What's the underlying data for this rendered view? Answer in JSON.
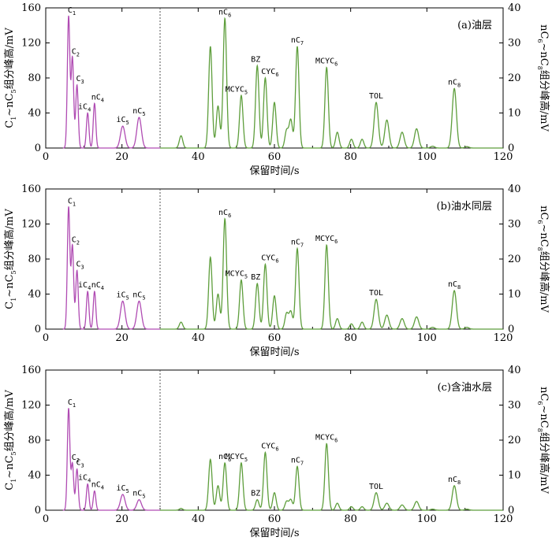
{
  "chart_data": [
    {
      "type": "line",
      "panel_label": "(a)油层",
      "xlabel": "保留时间/s",
      "ylabel_left": "C1~nC5组分峰高/mV",
      "ylabel_right": "nC6~nC8组分峰高/mV",
      "xlim": [
        0,
        120
      ],
      "xticks": [
        0,
        20,
        40,
        60,
        80,
        100,
        120
      ],
      "ylim_left": [
        0,
        160
      ],
      "yticks_left": [
        40,
        80,
        120,
        160
      ],
      "ylim_right": [
        0,
        40
      ],
      "yticks_right": [
        10,
        20,
        30,
        40
      ],
      "divider_x": 30,
      "series": [
        {
          "color": "#b04cb3",
          "axis": "left",
          "peaks": [
            {
              "label": "C1",
              "x": 6.0,
              "y": 150
            },
            {
              "label": "C2",
              "x": 7.0,
              "y": 103
            },
            {
              "label": "C3",
              "x": 8.2,
              "y": 72
            },
            {
              "label": "iC4",
              "x": 11.0,
              "y": 40
            },
            {
              "label": "nC4",
              "x": 12.8,
              "y": 51
            },
            {
              "label": "iC5",
              "x": 20.2,
              "y": 25
            },
            {
              "label": "nC5",
              "x": 24.5,
              "y": 35
            }
          ]
        },
        {
          "color": "#5e9e3c",
          "axis": "right",
          "peaks": [
            {
              "label": "",
              "x": 35.5,
              "y": 3.5
            },
            {
              "label": "",
              "x": 43.2,
              "y": 29
            },
            {
              "label": "",
              "x": 45.2,
              "y": 12
            },
            {
              "label": "nC6",
              "x": 47.0,
              "y": 37
            },
            {
              "label": "MCYC5",
              "x": 51.3,
              "y": 15
            },
            {
              "label": "BZ",
              "x": 55.5,
              "y": 23.5
            },
            {
              "label": "CYC6",
              "x": 57.6,
              "y": 20
            },
            {
              "label": "",
              "x": 60.0,
              "y": 13
            },
            {
              "label": "",
              "x": 63.2,
              "y": 5
            },
            {
              "label": "",
              "x": 64.3,
              "y": 8
            },
            {
              "label": "nC7",
              "x": 66.0,
              "y": 29
            },
            {
              "label": "MCYC6",
              "x": 73.7,
              "y": 23
            },
            {
              "label": "",
              "x": 76.5,
              "y": 4.5
            },
            {
              "label": "",
              "x": 80.2,
              "y": 2.5
            },
            {
              "label": "",
              "x": 83.0,
              "y": 2.5
            },
            {
              "label": "TOL",
              "x": 86.7,
              "y": 13
            },
            {
              "label": "",
              "x": 89.5,
              "y": 8
            },
            {
              "label": "",
              "x": 93.5,
              "y": 4.5
            },
            {
              "label": "",
              "x": 97.3,
              "y": 5.5
            },
            {
              "label": "",
              "x": 101.5,
              "y": 0.5
            },
            {
              "label": "nC8",
              "x": 107.2,
              "y": 17
            },
            {
              "label": "",
              "x": 110.5,
              "y": 0.4
            }
          ]
        }
      ]
    },
    {
      "type": "line",
      "panel_label": "(b)油水同层",
      "xlabel": "保留时间/s",
      "ylabel_left": "C1~nC5组分峰高/mV",
      "ylabel_right": "nC6~nC8组分峰高/mV",
      "xlim": [
        0,
        120
      ],
      "xticks": [
        0,
        20,
        40,
        60,
        80,
        100,
        120
      ],
      "ylim_left": [
        0,
        160
      ],
      "yticks_left": [
        40,
        80,
        120,
        160
      ],
      "ylim_right": [
        0,
        40
      ],
      "yticks_right": [
        10,
        20,
        30,
        40
      ],
      "divider_x": 30,
      "series": [
        {
          "color": "#b04cb3",
          "axis": "left",
          "peaks": [
            {
              "label": "C1",
              "x": 6.0,
              "y": 139
            },
            {
              "label": "C2",
              "x": 7.0,
              "y": 95
            },
            {
              "label": "C3",
              "x": 8.2,
              "y": 67
            },
            {
              "label": "iC4",
              "x": 11.0,
              "y": 43
            },
            {
              "label": "nC4",
              "x": 12.8,
              "y": 43
            },
            {
              "label": "iC5",
              "x": 20.2,
              "y": 32
            },
            {
              "label": "nC5",
              "x": 24.5,
              "y": 32
            }
          ]
        },
        {
          "color": "#5e9e3c",
          "axis": "right",
          "peaks": [
            {
              "label": "",
              "x": 35.5,
              "y": 2
            },
            {
              "label": "",
              "x": 43.2,
              "y": 20.5
            },
            {
              "label": "",
              "x": 45.2,
              "y": 10
            },
            {
              "label": "nC6",
              "x": 47.0,
              "y": 31.5
            },
            {
              "label": "MCYC5",
              "x": 51.3,
              "y": 14
            },
            {
              "label": "BZ",
              "x": 55.5,
              "y": 13
            },
            {
              "label": "CYC6",
              "x": 57.6,
              "y": 18.5
            },
            {
              "label": "",
              "x": 60.0,
              "y": 9.5
            },
            {
              "label": "",
              "x": 63.2,
              "y": 4.5
            },
            {
              "label": "",
              "x": 64.3,
              "y": 5
            },
            {
              "label": "nC7",
              "x": 66.0,
              "y": 23
            },
            {
              "label": "MCYC6",
              "x": 73.7,
              "y": 24
            },
            {
              "label": "",
              "x": 76.5,
              "y": 3
            },
            {
              "label": "",
              "x": 80.2,
              "y": 1.5
            },
            {
              "label": "",
              "x": 83.0,
              "y": 2
            },
            {
              "label": "TOL",
              "x": 86.7,
              "y": 8.5
            },
            {
              "label": "",
              "x": 89.5,
              "y": 4
            },
            {
              "label": "",
              "x": 93.5,
              "y": 3
            },
            {
              "label": "",
              "x": 97.3,
              "y": 3.5
            },
            {
              "label": "",
              "x": 101.5,
              "y": 0.5
            },
            {
              "label": "nC8",
              "x": 107.2,
              "y": 11
            },
            {
              "label": "",
              "x": 110.5,
              "y": 0.5
            }
          ]
        }
      ]
    },
    {
      "type": "line",
      "panel_label": "(c)含油水层",
      "xlabel": "保留时间/s",
      "ylabel_left": "C1~nC5组分峰高/mV",
      "ylabel_right": "nC6~nC8组分峰高/mV",
      "xlim": [
        0,
        120
      ],
      "xticks": [
        0,
        20,
        40,
        60,
        80,
        100,
        120
      ],
      "ylim_left": [
        0,
        160
      ],
      "yticks_left": [
        40,
        80,
        120,
        160
      ],
      "ylim_right": [
        0,
        40
      ],
      "yticks_right": [
        10,
        20,
        30,
        40
      ],
      "divider_x": 30,
      "series": [
        {
          "color": "#b04cb3",
          "axis": "left",
          "peaks": [
            {
              "label": "C1",
              "x": 6.0,
              "y": 116
            },
            {
              "label": "C2",
              "x": 7.0,
              "y": 53
            },
            {
              "label": "C3",
              "x": 8.2,
              "y": 47
            },
            {
              "label": "iC4",
              "x": 11.0,
              "y": 30
            },
            {
              "label": "nC4",
              "x": 12.8,
              "y": 22
            },
            {
              "label": "iC5",
              "x": 20.2,
              "y": 18
            },
            {
              "label": "nC5",
              "x": 24.5,
              "y": 12
            }
          ]
        },
        {
          "color": "#5e9e3c",
          "axis": "right",
          "peaks": [
            {
              "label": "",
              "x": 35.5,
              "y": 0.5
            },
            {
              "label": "",
              "x": 43.2,
              "y": 14.5
            },
            {
              "label": "",
              "x": 45.2,
              "y": 7
            },
            {
              "label": "nC6",
              "x": 47.0,
              "y": 13.5
            },
            {
              "label": "MCYC5",
              "x": 51.3,
              "y": 13.5
            },
            {
              "label": "BZ",
              "x": 55.5,
              "y": 3
            },
            {
              "label": "CYC6",
              "x": 57.6,
              "y": 16.5
            },
            {
              "label": "",
              "x": 60.0,
              "y": 5
            },
            {
              "label": "",
              "x": 63.2,
              "y": 2.5
            },
            {
              "label": "",
              "x": 64.3,
              "y": 3
            },
            {
              "label": "nC7",
              "x": 66.0,
              "y": 12.5
            },
            {
              "label": "MCYC6",
              "x": 73.7,
              "y": 19
            },
            {
              "label": "",
              "x": 76.5,
              "y": 2
            },
            {
              "label": "",
              "x": 80.2,
              "y": 1
            },
            {
              "label": "",
              "x": 83.0,
              "y": 1
            },
            {
              "label": "TOL",
              "x": 86.7,
              "y": 5
            },
            {
              "label": "",
              "x": 89.5,
              "y": 2
            },
            {
              "label": "",
              "x": 93.5,
              "y": 1.5
            },
            {
              "label": "",
              "x": 97.3,
              "y": 2.5
            },
            {
              "label": "",
              "x": 101.5,
              "y": 0.3
            },
            {
              "label": "nC8",
              "x": 107.2,
              "y": 7
            },
            {
              "label": "",
              "x": 110.5,
              "y": 0.3
            }
          ]
        }
      ]
    }
  ]
}
